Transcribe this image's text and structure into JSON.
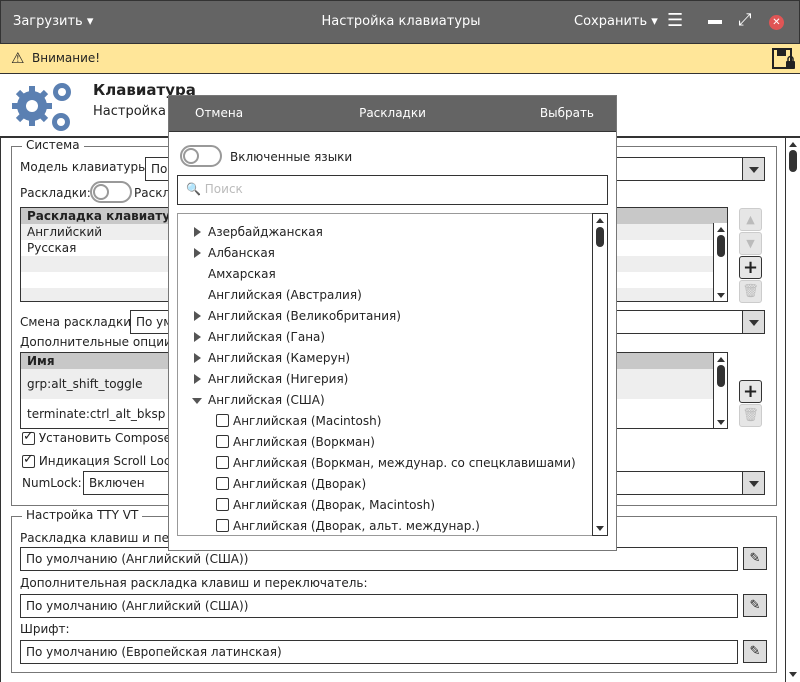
{
  "titlebar": {
    "load": "Загрузить",
    "title": "Настройка клавиатуры",
    "save": "Сохранить",
    "close_color": "#e05555"
  },
  "warning": {
    "text": "Внимание!",
    "bg": "#ffe699"
  },
  "header": {
    "title": "Клавиатура",
    "subtitle": "Настройка п",
    "icon_color": "#5b80b2"
  },
  "system": {
    "legend": "Система",
    "model_label": "Модель клавиатуры:",
    "model_value": "По",
    "layouts_label": "Раскладки:",
    "layouts_toggle_label": "Раскл",
    "layouts_table": {
      "header": "Раскладка клавиатуры",
      "rows": [
        "Английский",
        "Русская",
        "",
        "",
        ""
      ]
    },
    "switch_label": "Смена раскладки:",
    "switch_value": "По ум",
    "options_label": "Дополнительные опции:",
    "options_table": {
      "header": "Имя",
      "rows": [
        "grp:alt_shift_toggle",
        "terminate:ctrl_alt_bksp"
      ]
    },
    "compose_label": "Установить Compose",
    "compose_checked": true,
    "scroll_label": "Индикация Scroll Lock",
    "scroll_checked": true,
    "numlock_label": "NumLock:",
    "numlock_value": "Включен"
  },
  "tty": {
    "legend": "Настройка TTY VT",
    "fields": [
      {
        "label": "Раскладка клавиш и пере",
        "value": "По умолчанию (Английский (США))"
      },
      {
        "label": "Дополнительная раскладка клавиш и переключатель:",
        "value": "По умолчанию (Английский (США))"
      },
      {
        "label": "Шрифт:",
        "value": "По умолчанию (Европейская латинская)"
      }
    ]
  },
  "dialog": {
    "cancel": "Отмена",
    "title": "Раскладки",
    "select": "Выбрать",
    "enabled_langs": "Включенные языки",
    "search_placeholder": "Поиск",
    "items": [
      {
        "label": "Азербайджанская",
        "type": "collapsed"
      },
      {
        "label": "Албанская",
        "type": "collapsed"
      },
      {
        "label": "Амхарская",
        "type": "leaf"
      },
      {
        "label": "Английская (Австралия)",
        "type": "leaf"
      },
      {
        "label": "Английская (Великобритания)",
        "type": "collapsed"
      },
      {
        "label": "Английская (Гана)",
        "type": "collapsed"
      },
      {
        "label": "Английская (Камерун)",
        "type": "collapsed"
      },
      {
        "label": "Английская (Нигерия)",
        "type": "collapsed"
      },
      {
        "label": "Английская (США)",
        "type": "expanded"
      },
      {
        "label": "Английская (Macintosh)",
        "type": "check"
      },
      {
        "label": "Английская (Воркман)",
        "type": "check"
      },
      {
        "label": "Английская (Воркман, междунар. со спецклавишами)",
        "type": "check"
      },
      {
        "label": "Английская (Дворак)",
        "type": "check"
      },
      {
        "label": "Английская (Дворак, Macintosh)",
        "type": "check"
      },
      {
        "label": "Английская (Дворак, альт. междунар.)",
        "type": "check"
      }
    ]
  }
}
